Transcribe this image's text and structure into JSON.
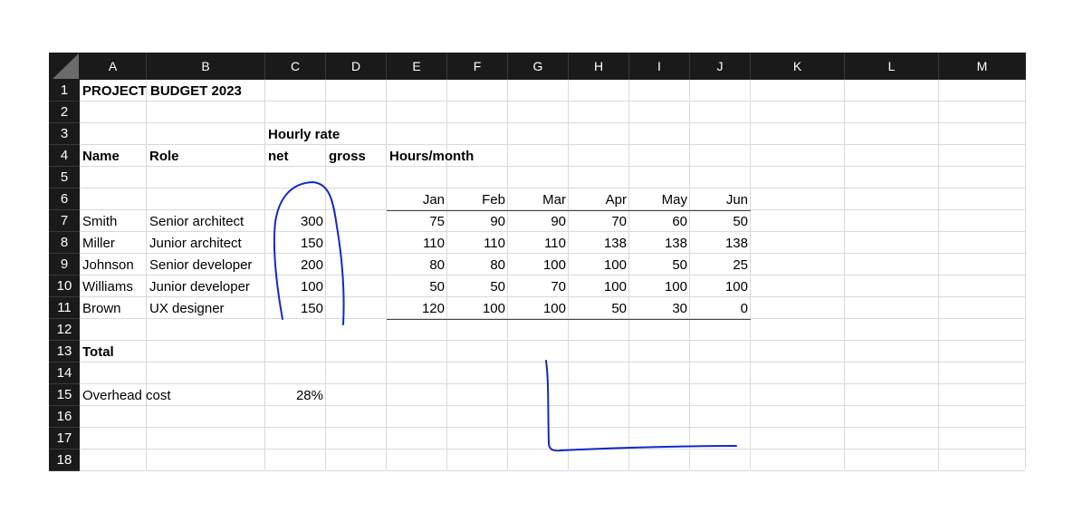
{
  "sheet": {
    "columns": [
      "A",
      "B",
      "C",
      "D",
      "E",
      "F",
      "G",
      "H",
      "I",
      "J",
      "K",
      "L",
      "M"
    ],
    "rows": [
      "1",
      "2",
      "3",
      "4",
      "5",
      "6",
      "7",
      "8",
      "9",
      "10",
      "11",
      "12",
      "13",
      "14",
      "15",
      "16",
      "17",
      "18"
    ]
  },
  "title": "PROJECT BUDGET 2023",
  "headers": {
    "hourly_rate": "Hourly rate",
    "name": "Name",
    "role": "Role",
    "net": "net",
    "gross": "gross",
    "hours_month": "Hours/month"
  },
  "months": [
    "Jan",
    "Feb",
    "Mar",
    "Apr",
    "May",
    "Jun"
  ],
  "people": [
    {
      "name": "Smith",
      "role": "Senior architect",
      "net": "300",
      "hours": [
        "75",
        "90",
        "90",
        "70",
        "60",
        "50"
      ]
    },
    {
      "name": "Miller",
      "role": "Junior architect",
      "net": "150",
      "hours": [
        "110",
        "110",
        "110",
        "138",
        "138",
        "138"
      ]
    },
    {
      "name": "Johnson",
      "role": "Senior developer",
      "net": "200",
      "hours": [
        "80",
        "80",
        "100",
        "100",
        "50",
        "25"
      ]
    },
    {
      "name": "Williams",
      "role": "Junior developer",
      "net": "100",
      "hours": [
        "50",
        "50",
        "70",
        "100",
        "100",
        "100"
      ]
    },
    {
      "name": "Brown",
      "role": "UX designer",
      "net": "150",
      "hours": [
        "120",
        "100",
        "100",
        "50",
        "30",
        "0"
      ]
    }
  ],
  "total_label": "Total",
  "overhead": {
    "label": "Overhead cost",
    "value": "28%"
  },
  "colors": {
    "header_bg": "#1a1a1a",
    "header_text": "#ffffff",
    "gridline": "#d9d9d9",
    "ink": "#1428c8"
  }
}
